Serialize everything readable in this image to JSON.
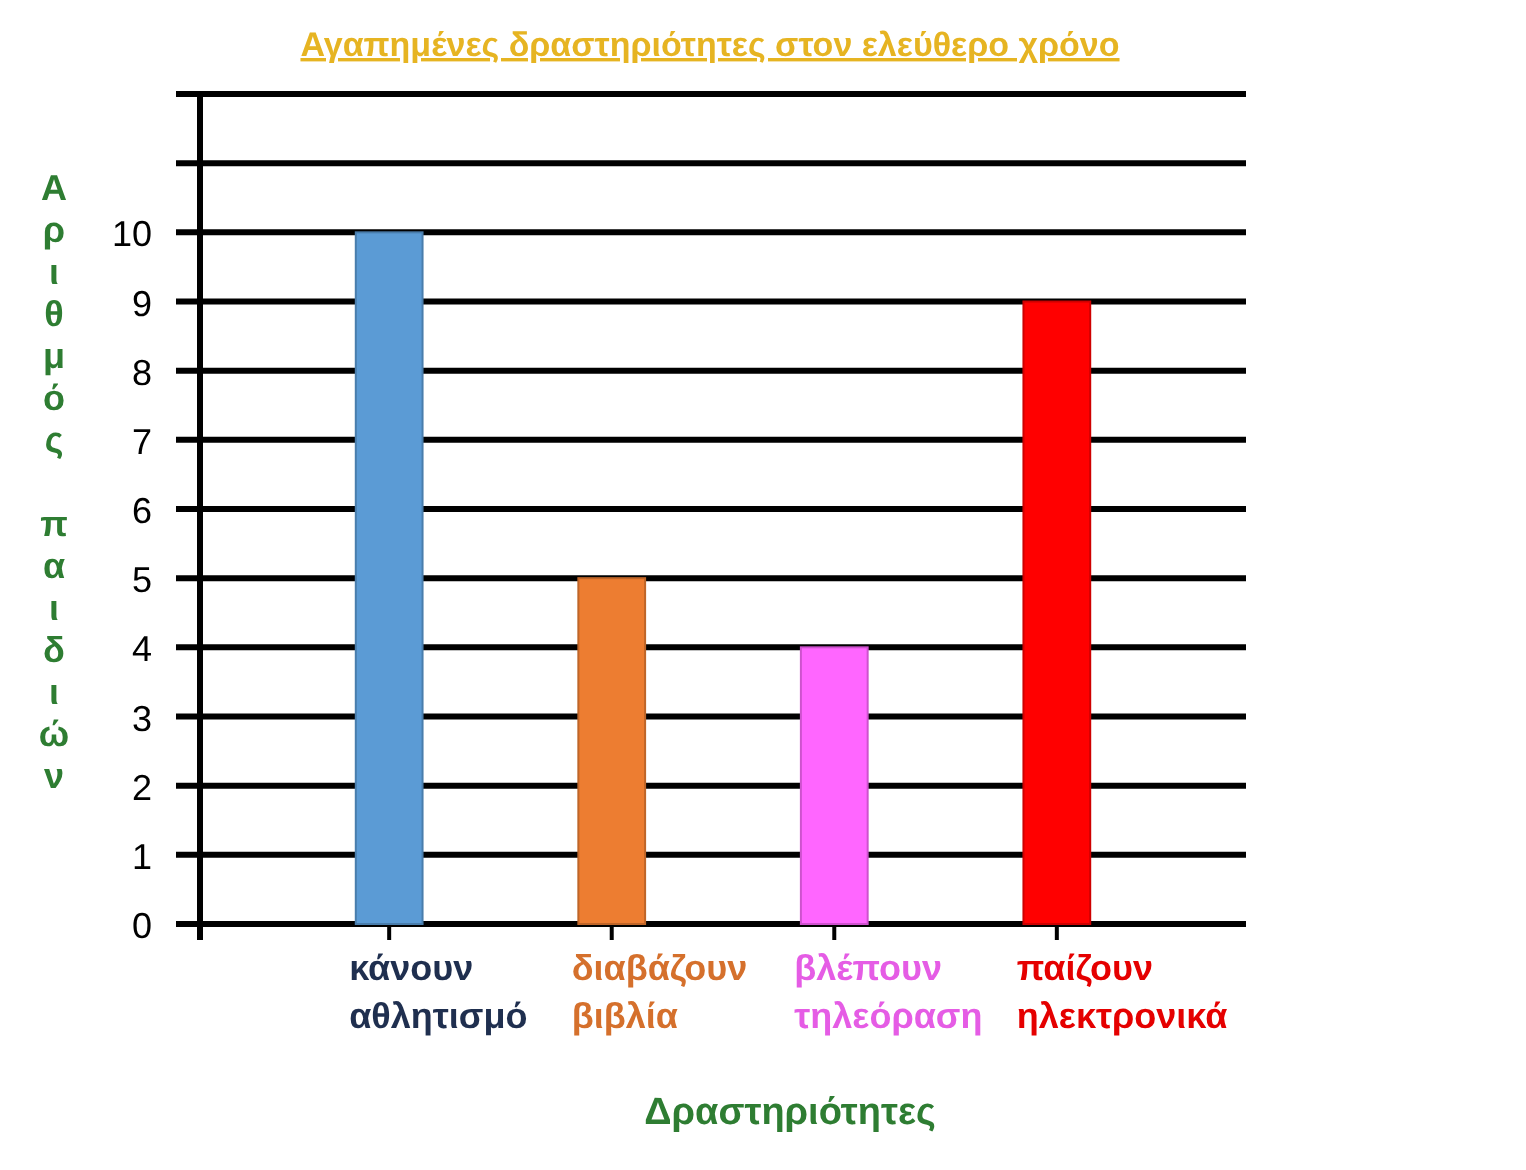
{
  "chart_data": {
    "type": "bar",
    "title": "Αγαπημένες δραστηριότητες στον ελεύθερο χρόνο",
    "xlabel": "Δραστηριότητες",
    "ylabel": "Αριθμός παιδιών",
    "categories": [
      "κάνουν αθλητισμό",
      "διαβάζουν βιβλία",
      "βλέπουν τηλεόραση",
      "παίζουν ηλεκτρονικά"
    ],
    "values": [
      10,
      5,
      4,
      9
    ],
    "colors": [
      "#5b9bd5",
      "#ed7d31",
      "#ff66ff",
      "#ff0000"
    ],
    "ylim": [
      0,
      12
    ],
    "yticks": [
      0,
      1,
      2,
      3,
      4,
      5,
      6,
      7,
      8,
      9,
      10,
      {
        "value": 11,
        "label": null
      },
      {
        "value": 12,
        "label": null
      }
    ],
    "grid": "y"
  }
}
